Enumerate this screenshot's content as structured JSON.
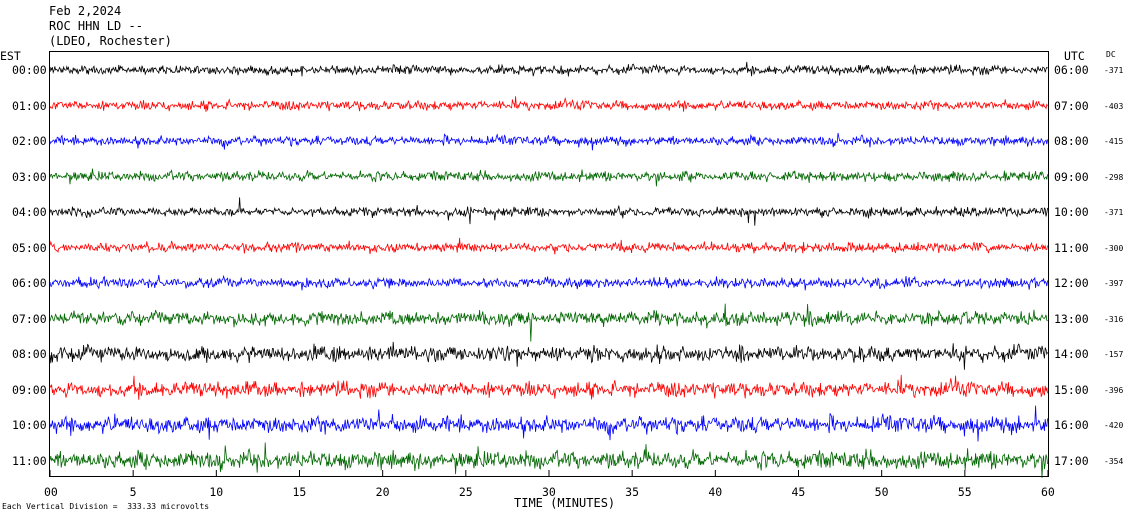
{
  "header": {
    "date": "Feb 2,2024",
    "station": "ROC HHN LD --",
    "location": "(LDEO, Rochester)"
  },
  "labels": {
    "left_zone": "EST",
    "right_zone": "UTC",
    "dc_header": "DC",
    "footer_note": "Each Vertical Division =  333.33 microvolts"
  },
  "chart_data": {
    "type": "line",
    "xlabel": "TIME (MINUTES)",
    "xlim": [
      0,
      60
    ],
    "x_ticks": [
      "00",
      "5",
      "10",
      "15",
      "20",
      "25",
      "30",
      "35",
      "40",
      "45",
      "50",
      "55",
      "60"
    ],
    "grid": false,
    "color_cycle": [
      "#000000",
      "#ff0000",
      "#0000ff",
      "#006600"
    ],
    "rows": [
      {
        "est": "00:00",
        "utc": "06:00",
        "dc": "-371",
        "color": "#000000",
        "activity": 0.8
      },
      {
        "est": "01:00",
        "utc": "07:00",
        "dc": "-403",
        "color": "#ff0000",
        "activity": 0.85
      },
      {
        "est": "02:00",
        "utc": "08:00",
        "dc": "-415",
        "color": "#0000ff",
        "activity": 0.85
      },
      {
        "est": "03:00",
        "utc": "09:00",
        "dc": "-298",
        "color": "#006600",
        "activity": 0.9
      },
      {
        "est": "04:00",
        "utc": "10:00",
        "dc": "-371",
        "color": "#000000",
        "activity": 0.8
      },
      {
        "est": "05:00",
        "utc": "11:00",
        "dc": "-300",
        "color": "#ff0000",
        "activity": 0.85
      },
      {
        "est": "06:00",
        "utc": "12:00",
        "dc": "-397",
        "color": "#0000ff",
        "activity": 0.9
      },
      {
        "est": "07:00",
        "utc": "13:00",
        "dc": "-316",
        "color": "#006600",
        "activity": 1.25
      },
      {
        "est": "08:00",
        "utc": "14:00",
        "dc": "-157",
        "color": "#000000",
        "activity": 1.35
      },
      {
        "est": "09:00",
        "utc": "15:00",
        "dc": "-396",
        "color": "#ff0000",
        "activity": 1.35
      },
      {
        "est": "10:00",
        "utc": "16:00",
        "dc": "-420",
        "color": "#0000ff",
        "activity": 1.5
      },
      {
        "est": "11:00",
        "utc": "17:00",
        "dc": "-354",
        "color": "#006600",
        "activity": 1.6
      }
    ]
  }
}
